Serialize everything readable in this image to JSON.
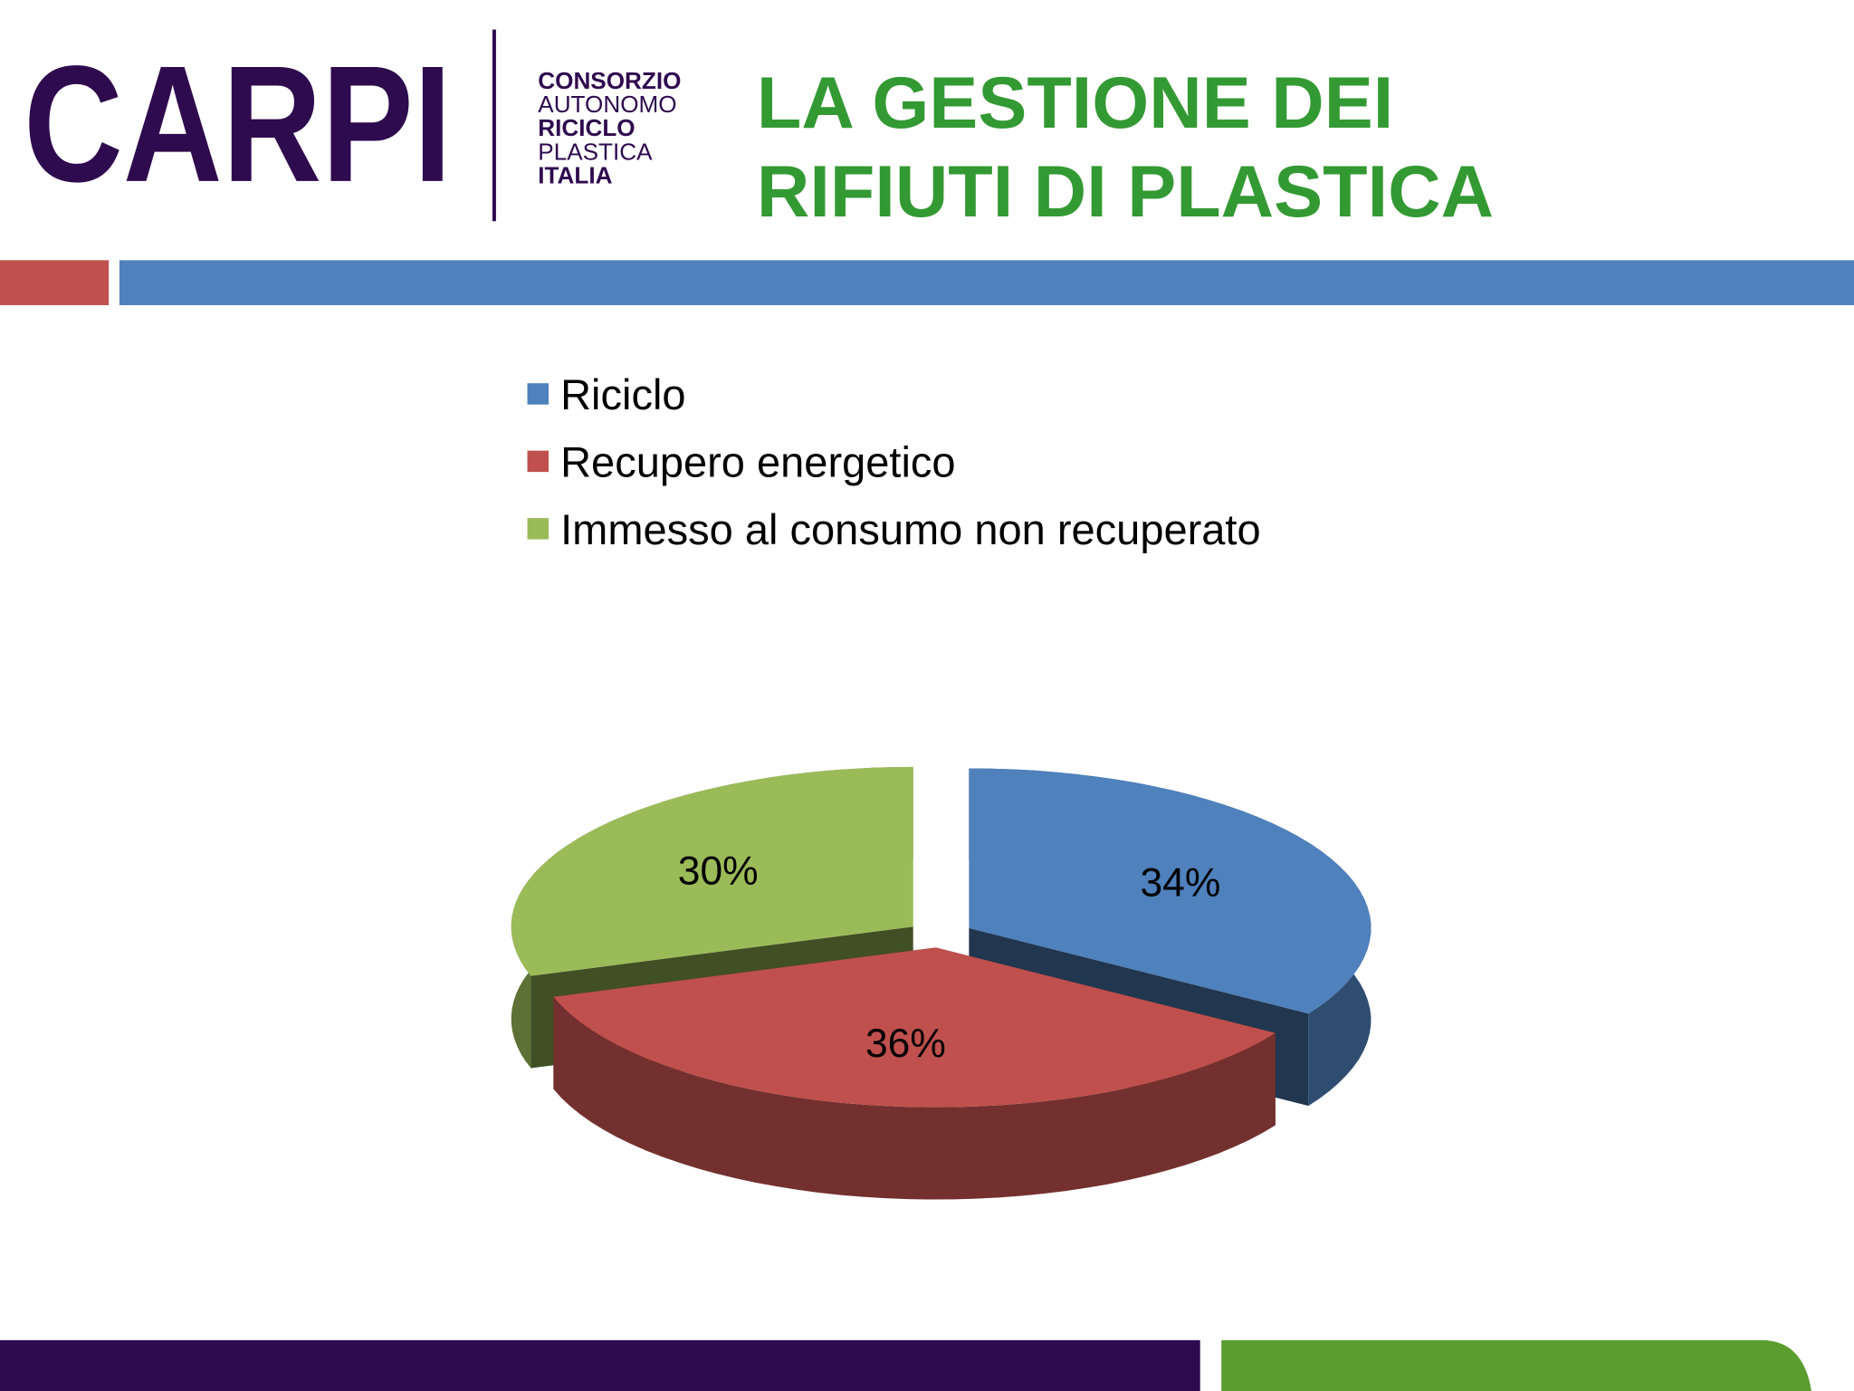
{
  "header": {
    "logo": "CARPI",
    "logo_lines": [
      "CONSORZIO",
      "AUTONOMO",
      "RICICLO",
      "PLASTICA",
      "ITALIA"
    ],
    "title_lines": [
      "LA GESTIONE DEI",
      "RIFIUTI DI PLASTICA"
    ]
  },
  "chart_data": {
    "type": "pie",
    "categories": [
      "Riciclo",
      "Recupero energetico",
      "Immesso al consumo non recuperato"
    ],
    "values": [
      34,
      36,
      30
    ],
    "value_labels": [
      "34%",
      "36%",
      "30%"
    ],
    "colors": [
      "#4f81bd",
      "#c0504d",
      "#9bbb59"
    ],
    "legend": "top"
  }
}
